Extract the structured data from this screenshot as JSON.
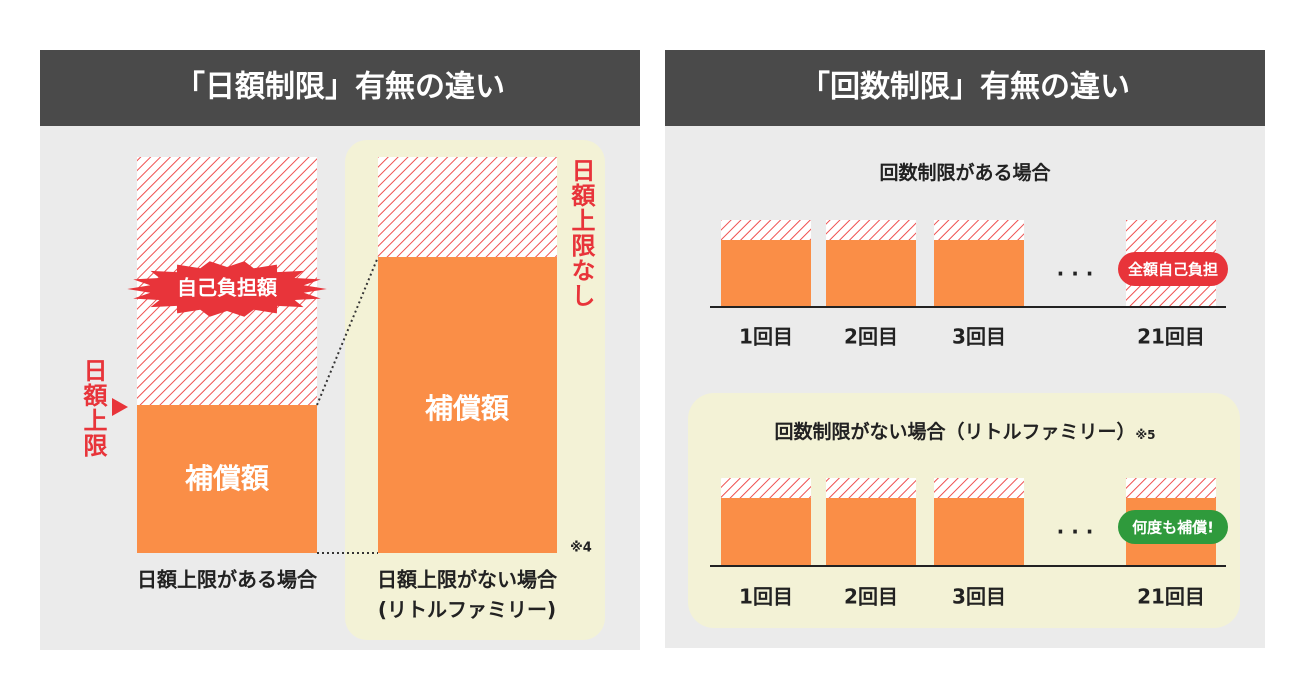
{
  "left": {
    "title": "「日額制限」有無の違い",
    "self_pay_label": "自己負担額",
    "limit_label": "日額上限",
    "no_limit_label": "日額上限なし",
    "cases": [
      {
        "bar_label": "補償額",
        "caption": "日額上限がある場合"
      },
      {
        "bar_label": "補償額",
        "caption": "日額上限がない場合",
        "subcaption": "(リトルファミリー)",
        "note": "※4"
      }
    ]
  },
  "right": {
    "title": "「回数制限」有無の違い",
    "sections": [
      {
        "heading": "回数制限がある場合",
        "rounds": [
          "1回目",
          "2回目",
          "3回目",
          "21回目"
        ],
        "ellipsis": ". . .",
        "badge": "全額自己負担"
      },
      {
        "heading": "回数制限がない場合（リトルファミリー）",
        "note": "※5",
        "rounds": [
          "1回目",
          "2回目",
          "3回目",
          "21回目"
        ],
        "ellipsis": ". . .",
        "badge": "何度も補償!"
      }
    ]
  }
}
